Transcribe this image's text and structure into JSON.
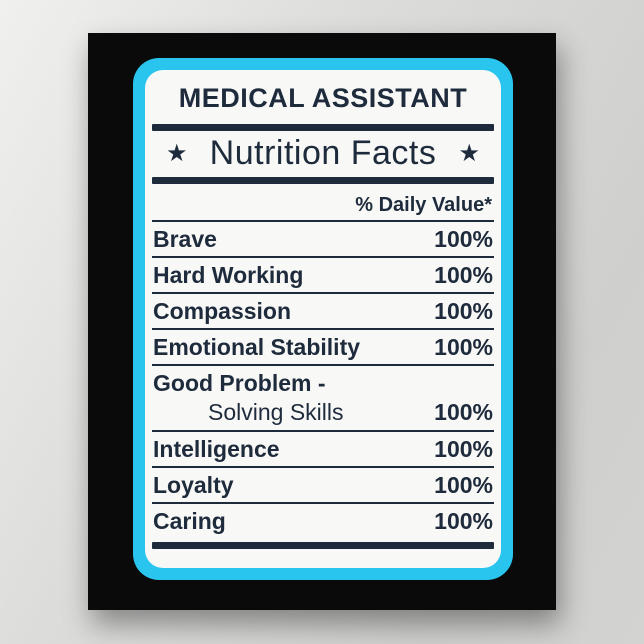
{
  "poster": {
    "title": "MEDICAL ASSISTANT",
    "star": "★",
    "heading": "Nutrition Facts",
    "daily_value_heading": "% Daily Value*",
    "rows": [
      {
        "label": "Brave",
        "value": "100%"
      },
      {
        "label": "Hard Working",
        "value": "100%"
      },
      {
        "label": "Compassion",
        "value": "100%"
      },
      {
        "label": "Emotional Stability",
        "value": "100%"
      },
      {
        "label": "Good Problem -",
        "sublabel": "Solving Skills",
        "value": "100%"
      },
      {
        "label": "Intelligence",
        "value": "100%"
      },
      {
        "label": "Loyalty",
        "value": "100%"
      },
      {
        "label": "Caring",
        "value": "100%"
      }
    ],
    "colors": {
      "wall_gray": "#d9d9d7",
      "poster_black": "#0a0a0a",
      "frame_cyan": "#29c5ef",
      "card_white": "#f8f8f6",
      "ink_navy": "#1e2b3c"
    }
  }
}
